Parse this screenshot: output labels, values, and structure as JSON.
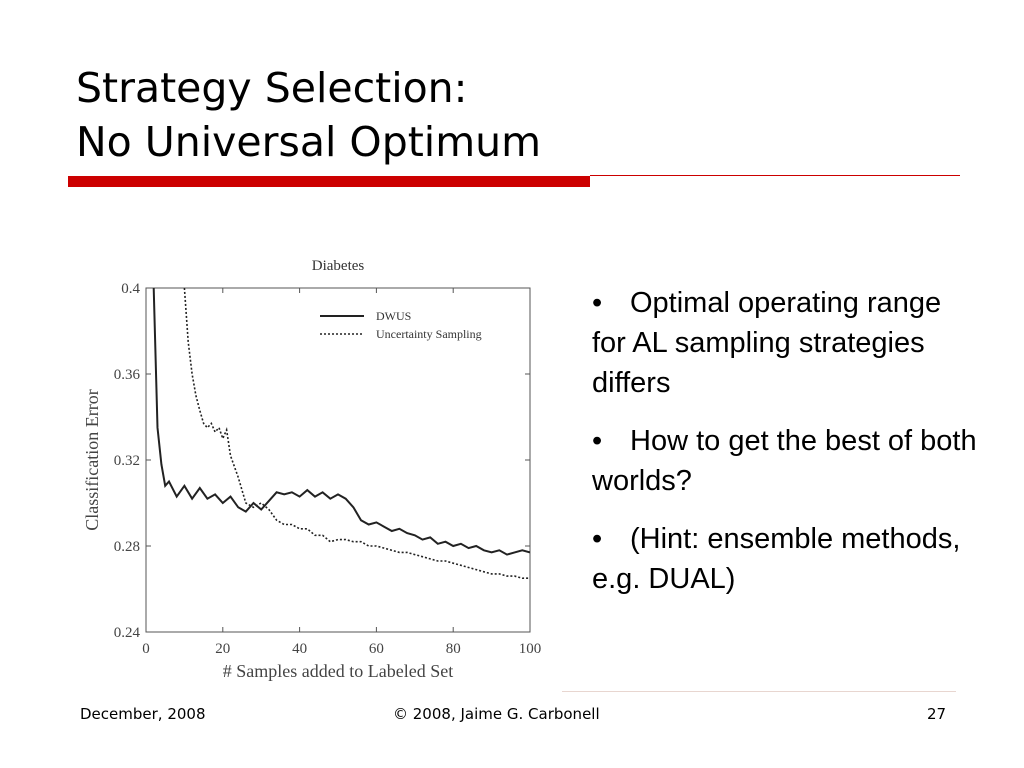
{
  "slide": {
    "title_line1": "Strategy Selection:",
    "title_line2": "No Universal Optimum",
    "accent_color": "#cc0000"
  },
  "bullets": [
    "Optimal operating range for AL sampling strategies differs",
    "How to get the best of both worlds?",
    "(Hint: ensemble methods, e.g. DUAL)"
  ],
  "bullet_glyph": "•",
  "footer": {
    "date": "December, 2008",
    "copyright": "© 2008, Jaime G. Carbonell",
    "page": "27"
  },
  "chart_data": {
    "type": "line",
    "title": "Diabetes",
    "xlabel": "# Samples added to Labeled Set",
    "ylabel": "Classification Error",
    "xlim": [
      0,
      100
    ],
    "ylim": [
      0.24,
      0.4
    ],
    "xticks": [
      "0",
      "20",
      "40",
      "60",
      "80",
      "100"
    ],
    "yticks": [
      "0.24",
      "0.28",
      "0.32",
      "0.36",
      "0.4"
    ],
    "grid": false,
    "legend_position": "top-right",
    "series": [
      {
        "name": "DWUS",
        "style": "solid",
        "x": [
          2,
          3,
          4,
          5,
          6,
          8,
          10,
          12,
          14,
          16,
          18,
          20,
          22,
          24,
          26,
          28,
          30,
          32,
          34,
          36,
          38,
          40,
          42,
          44,
          46,
          48,
          50,
          52,
          54,
          56,
          58,
          60,
          62,
          64,
          66,
          68,
          70,
          72,
          74,
          76,
          78,
          80,
          82,
          84,
          86,
          88,
          90,
          92,
          94,
          96,
          98,
          100
        ],
        "y": [
          0.4,
          0.335,
          0.318,
          0.308,
          0.31,
          0.303,
          0.308,
          0.302,
          0.307,
          0.302,
          0.304,
          0.3,
          0.303,
          0.298,
          0.296,
          0.3,
          0.297,
          0.301,
          0.305,
          0.304,
          0.305,
          0.303,
          0.306,
          0.303,
          0.305,
          0.302,
          0.304,
          0.302,
          0.298,
          0.292,
          0.29,
          0.291,
          0.289,
          0.287,
          0.288,
          0.286,
          0.285,
          0.283,
          0.284,
          0.281,
          0.282,
          0.28,
          0.281,
          0.279,
          0.28,
          0.278,
          0.277,
          0.278,
          0.276,
          0.277,
          0.278,
          0.277
        ]
      },
      {
        "name": "Uncertainty Sampling",
        "style": "dotted",
        "x": [
          10,
          11,
          12,
          13,
          14,
          15,
          16,
          17,
          18,
          19,
          20,
          21,
          22,
          24,
          26,
          28,
          30,
          32,
          34,
          36,
          38,
          40,
          42,
          44,
          46,
          48,
          50,
          52,
          54,
          56,
          58,
          60,
          62,
          64,
          66,
          68,
          70,
          72,
          74,
          76,
          78,
          80,
          82,
          84,
          86,
          88,
          90,
          92,
          94,
          96,
          98,
          100
        ],
        "y": [
          0.4,
          0.375,
          0.36,
          0.35,
          0.343,
          0.337,
          0.335,
          0.337,
          0.333,
          0.335,
          0.33,
          0.334,
          0.322,
          0.312,
          0.3,
          0.298,
          0.3,
          0.297,
          0.292,
          0.29,
          0.29,
          0.288,
          0.288,
          0.285,
          0.285,
          0.282,
          0.283,
          0.283,
          0.282,
          0.282,
          0.28,
          0.28,
          0.279,
          0.278,
          0.277,
          0.277,
          0.276,
          0.275,
          0.274,
          0.273,
          0.273,
          0.272,
          0.271,
          0.27,
          0.269,
          0.268,
          0.267,
          0.267,
          0.266,
          0.266,
          0.265,
          0.265
        ]
      }
    ]
  }
}
